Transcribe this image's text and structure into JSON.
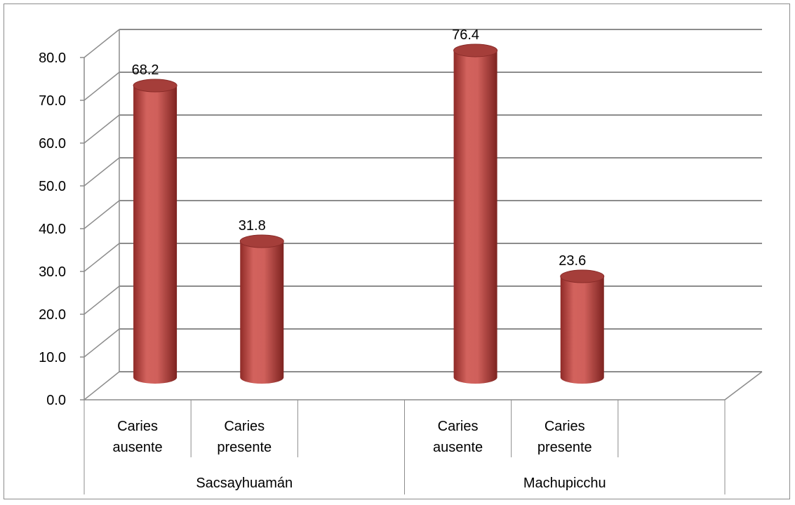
{
  "chart_data": {
    "type": "bar",
    "style": "3d-cylinder",
    "title": "",
    "xlabel": "",
    "ylabel": "",
    "ylim": [
      0,
      80
    ],
    "yticks": [
      "0.0",
      "10.0",
      "20.0",
      "30.0",
      "40.0",
      "50.0",
      "60.0",
      "70.0",
      "80.0"
    ],
    "grid": true,
    "legend": "none",
    "groups": [
      {
        "name": "Sacsayhuamán",
        "categories": [
          "Caries ausente",
          "Caries presente"
        ]
      },
      {
        "name": "Machupicchu",
        "categories": [
          "Caries ausente",
          "Caries presente"
        ]
      }
    ],
    "values": [
      68.2,
      31.8,
      76.4,
      23.6
    ],
    "data_labels": [
      "68.2",
      "31.8",
      "76.4",
      "23.6"
    ],
    "bar_color": "#c0504d"
  }
}
